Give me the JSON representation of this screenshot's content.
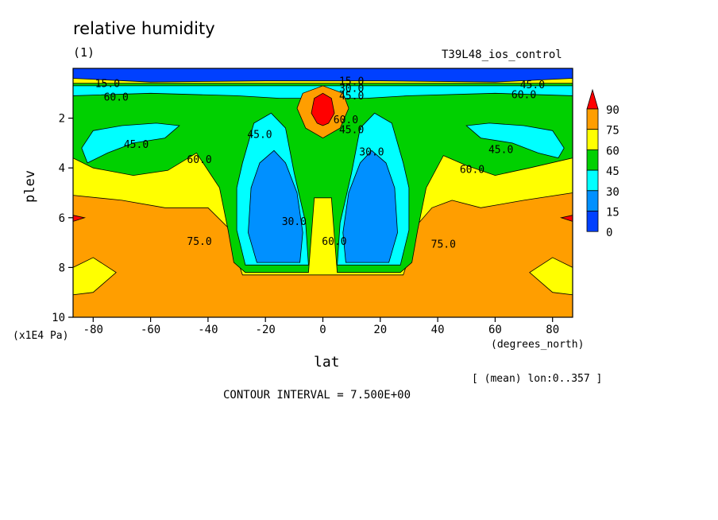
{
  "header": {
    "title": "relative humidity",
    "panel": "(1)",
    "run": "T39L48_ios_control"
  },
  "axes": {
    "ylabel": "plev",
    "yunit": "(x1E4 Pa)",
    "xlabel": "lat",
    "xunit": "(degrees_north)"
  },
  "footer": {
    "mean_note": "[ (mean) lon:0..357 ]",
    "contour_interval": "CONTOUR INTERVAL = 7.500E+00"
  },
  "colors": {
    "above_90": "#ff0000",
    "75_90": "#ff9e00",
    "60_75": "#ffff00",
    "45_60": "#00d000",
    "30_45": "#00ffff",
    "15_30": "#0090ff",
    "0_15": "#0040ff"
  },
  "chart_data": {
    "type": "heatmap",
    "subtype": "filled contour",
    "x": {
      "label": "lat",
      "unit": "degrees_north",
      "range": [
        -87,
        87
      ],
      "ticks": [
        -80,
        -60,
        -40,
        -20,
        0,
        20,
        40,
        60,
        80
      ]
    },
    "y": {
      "label": "plev",
      "unit": "x1E4 Pa",
      "range": [
        0,
        10
      ],
      "inverted": true,
      "ticks": [
        2,
        4,
        6,
        8,
        10
      ]
    },
    "colorbar": {
      "levels": [
        0,
        15,
        30,
        45,
        60,
        75,
        90
      ],
      "labels": [
        "90",
        "75",
        "60",
        "45",
        "30",
        "15",
        "0"
      ]
    },
    "contour_labels": [
      {
        "text": "15.0",
        "lat": -75,
        "plev": 0.75
      },
      {
        "text": "60.0",
        "lat": -72,
        "plev": 1.3
      },
      {
        "text": "15.0",
        "lat": 10,
        "plev": 0.65
      },
      {
        "text": "30.0",
        "lat": 10,
        "plev": 0.95
      },
      {
        "text": "45.0",
        "lat": 10,
        "plev": 1.25
      },
      {
        "text": "45.0",
        "lat": 73,
        "plev": 0.8
      },
      {
        "text": "60.0",
        "lat": 70,
        "plev": 1.2
      },
      {
        "text": "60.0",
        "lat": 8,
        "plev": 2.2
      },
      {
        "text": "45.0",
        "lat": 10,
        "plev": 2.6
      },
      {
        "text": "45.0",
        "lat": -65,
        "plev": 3.2
      },
      {
        "text": "45.0",
        "lat": -22,
        "plev": 2.8
      },
      {
        "text": "45.0",
        "lat": 62,
        "plev": 3.4
      },
      {
        "text": "60.0",
        "lat": -43,
        "plev": 3.8
      },
      {
        "text": "30.0",
        "lat": 17,
        "plev": 3.5
      },
      {
        "text": "60.0",
        "lat": 52,
        "plev": 4.2
      },
      {
        "text": "30.0",
        "lat": -10,
        "plev": 6.3
      },
      {
        "text": "60.0",
        "lat": 4,
        "plev": 7.1
      },
      {
        "text": "75.0",
        "lat": -43,
        "plev": 7.1
      },
      {
        "text": "75.0",
        "lat": 42,
        "plev": 7.2
      }
    ]
  }
}
